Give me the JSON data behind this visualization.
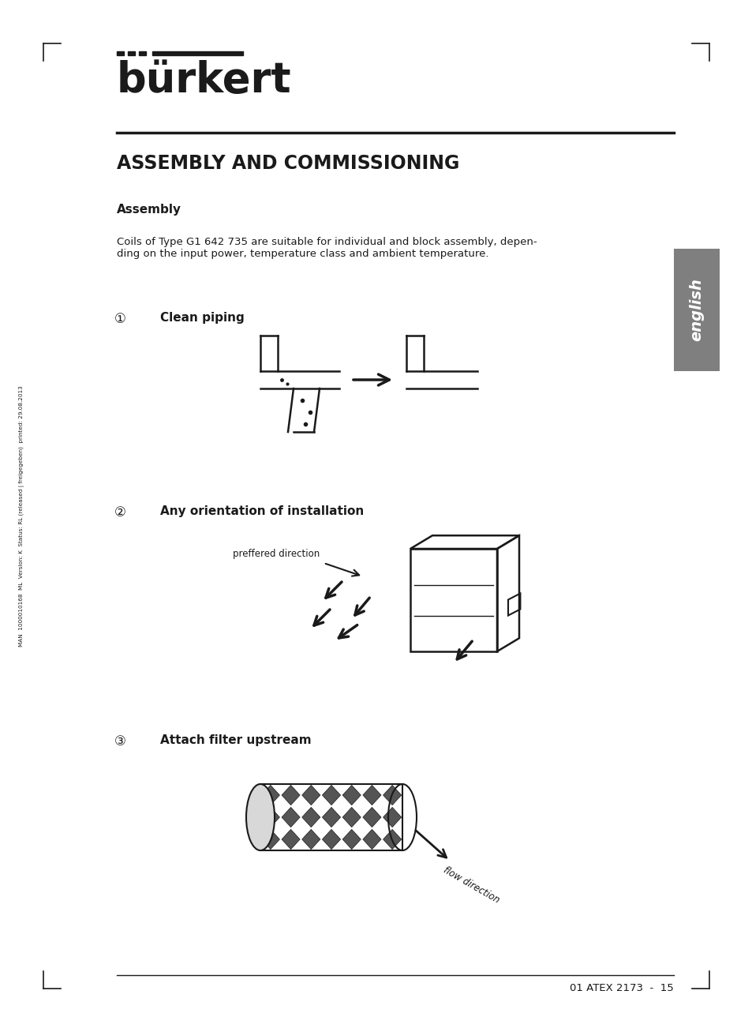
{
  "bg_color": "#ffffff",
  "title": "ASSEMBLY AND COMMISSIONING",
  "logo_text": "bürkert",
  "section_assembly": "Assembly",
  "body_text": "Coils of Type G1 642 735 are suitable for individual and block assembly, depen-\nding on the input power, temperature class and ambient temperature.",
  "step1_num": "①",
  "step1_text": "Clean piping",
  "step2_num": "②",
  "step2_text": "Any orientation of installation",
  "step3_num": "③",
  "step3_text": "Attach filter upstream",
  "preffered_dir_text": "preffered direction",
  "flow_dir_text": "flow direction",
  "english_tab_color": "#7f7f7f",
  "sidebar_text": "MAN  1000010168  ML  Version: K  Status: RL (released | freigegeben)  printed: 29.08.2013",
  "footer_text": "01 ATEX 2173  -  15",
  "dark": "#1a1a1a",
  "white": "#ffffff",
  "fig_w": 9.54,
  "fig_h": 13.07,
  "dpi": 100
}
